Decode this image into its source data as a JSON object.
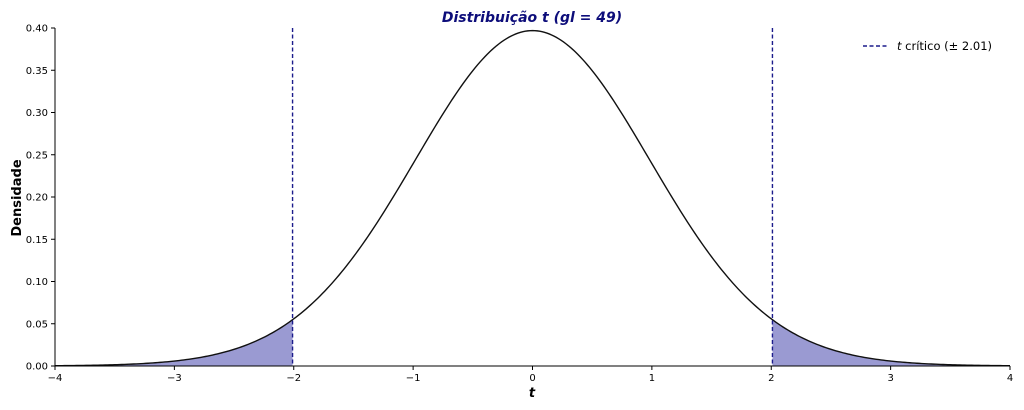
{
  "chart_data": {
    "type": "line",
    "title": "Distribuição t (gl = 49)",
    "xlabel": "t",
    "ylabel": "Densidade",
    "xlim": [
      -4,
      4
    ],
    "ylim": [
      0,
      0.4
    ],
    "x_ticks": [
      -4,
      -3,
      -2,
      -1,
      0,
      1,
      2,
      3,
      4
    ],
    "x_tick_labels": [
      "−4",
      "−3",
      "−2",
      "−1",
      "0",
      "1",
      "2",
      "3",
      "4"
    ],
    "y_ticks": [
      0.0,
      0.05,
      0.1,
      0.15,
      0.2,
      0.25,
      0.3,
      0.35,
      0.4
    ],
    "y_tick_labels": [
      "0.00",
      "0.05",
      "0.10",
      "0.15",
      "0.20",
      "0.25",
      "0.30",
      "0.35",
      "0.40"
    ],
    "degrees_of_freedom": 49,
    "critical_value": 2.01,
    "grid": false,
    "legend": {
      "placement": "top-right",
      "label_italic": "t",
      "label_rest": " crítico (± 2.01)"
    },
    "series": [
      {
        "kind": "density-curve",
        "x": [
          -4,
          -3.5,
          -3,
          -2.5,
          -2.01,
          -1.5,
          -1,
          -0.5,
          0,
          0.5,
          1,
          1.5,
          2.01,
          2.5,
          3,
          3.5,
          4
        ],
        "values": [
          0.0004,
          0.0015,
          0.0055,
          0.0185,
          0.0535,
          0.1296,
          0.2396,
          0.3505,
          0.3969,
          0.3505,
          0.2396,
          0.1296,
          0.0535,
          0.0185,
          0.0055,
          0.0015,
          0.0004
        ]
      },
      {
        "kind": "critical-lines",
        "x": [
          -2.01,
          2.01
        ]
      },
      {
        "kind": "shaded-tails",
        "ranges": [
          [
            -4,
            -2.01
          ],
          [
            2.01,
            4
          ]
        ]
      }
    ],
    "colors": {
      "curve": "#111111",
      "critical_line": "#1c1c8c",
      "tail_fill": "#9a9ad2",
      "title": "#0d0d7a"
    }
  }
}
